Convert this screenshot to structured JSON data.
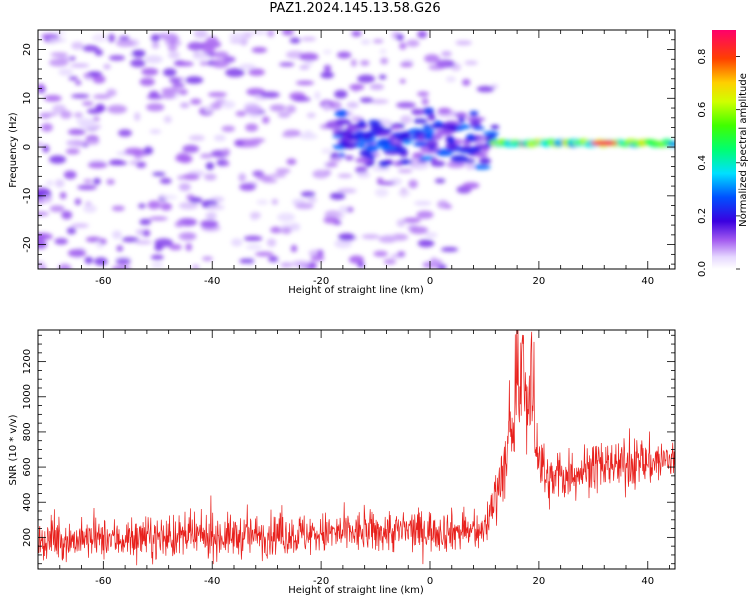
{
  "title": "PAZ1.2024.145.13.58.G26",
  "chart_data": [
    {
      "type": "heatmap",
      "xlabel": "Height of straight line (km)",
      "ylabel": "Frequency (Hz)",
      "xlim": [
        -72,
        45
      ],
      "ylim": [
        -25,
        24
      ],
      "xticks": [
        -60,
        -40,
        -20,
        0,
        20,
        40
      ],
      "yticks": [
        -20,
        -10,
        0,
        10,
        20
      ],
      "colorbar": {
        "label": "Normalized spectral amplitude",
        "range": [
          0,
          0.9
        ],
        "ticks": [
          "0.0",
          "0.2",
          "0.4",
          "0.6",
          "0.8"
        ],
        "colormap": "rainbow (white-violet-blue-cyan-green-yellow-orange-red)"
      },
      "features": [
        {
          "description": "low-amplitude scattered noise",
          "x_range": [
            -72,
            12
          ],
          "y_range": [
            -25,
            24
          ],
          "amplitude": 0.08
        },
        {
          "description": "signal band",
          "x_range": [
            -18,
            12
          ],
          "frequency": 1.5,
          "amplitude": 0.2
        },
        {
          "description": "strong carrier line",
          "x_range": [
            12,
            45
          ],
          "frequency": 0.8,
          "amplitude": 0.7
        },
        {
          "description": "peak",
          "x": 32,
          "frequency": 0.8,
          "amplitude": 0.88
        }
      ]
    },
    {
      "type": "line",
      "xlabel": "Height of straight line (km)",
      "ylabel": "SNR (10 * v/v)",
      "xlim": [
        -72,
        45
      ],
      "ylim": [
        20,
        1380
      ],
      "xticks": [
        -60,
        -40,
        -20,
        0,
        20,
        40
      ],
      "yticks": [
        200,
        400,
        600,
        800,
        1000,
        1200
      ],
      "color": "#e8201c",
      "series_profile": [
        {
          "x": -72,
          "mean": 180,
          "spread": 110
        },
        {
          "x": -45,
          "mean": 200,
          "spread": 120
        },
        {
          "x": -20,
          "mean": 220,
          "spread": 120
        },
        {
          "x": 0,
          "mean": 240,
          "spread": 120
        },
        {
          "x": 10,
          "mean": 230,
          "spread": 110
        },
        {
          "x": 12,
          "mean": 450,
          "spread": 150
        },
        {
          "x": 15,
          "mean": 750,
          "spread": 250
        },
        {
          "x": 17,
          "mean": 1050,
          "spread": 300
        },
        {
          "x": 19,
          "mean": 850,
          "spread": 300
        },
        {
          "x": 21,
          "mean": 520,
          "spread": 150
        },
        {
          "x": 30,
          "mean": 600,
          "spread": 140
        },
        {
          "x": 45,
          "mean": 640,
          "spread": 140
        }
      ]
    }
  ]
}
